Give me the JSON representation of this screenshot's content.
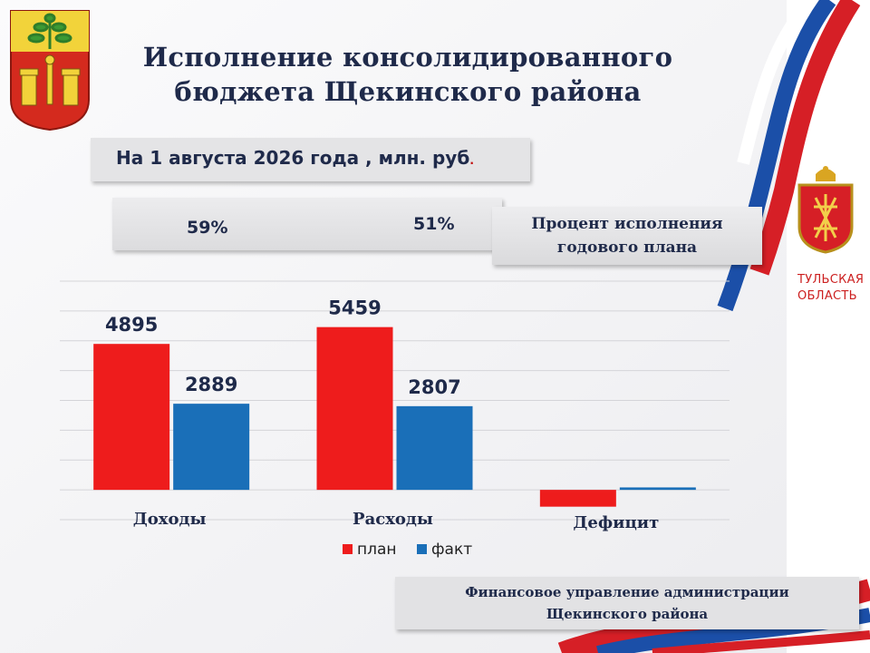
{
  "header": {
    "title_line1": "Исполнение консолидированного",
    "title_line2": "бюджета Щекинского района"
  },
  "date_label": "На 1 августа 2026 года , млн. руб",
  "date_suffix": ".",
  "percent": {
    "income": "59%",
    "expense": "51%",
    "legend_line1": "Процент исполнения",
    "legend_line2": "годового плана"
  },
  "chart_data": {
    "type": "bar",
    "categories": [
      "Доходы",
      "Расходы",
      "Дефицит"
    ],
    "series": [
      {
        "name": "план",
        "color": "#ee1c1c",
        "values": [
          4895,
          5459,
          -564
        ]
      },
      {
        "name": "факт",
        "color": "#1a6fb8",
        "values": [
          2889,
          2807,
          82
        ]
      }
    ],
    "data_labels": {
      "план": [
        "4895",
        "5459",
        ""
      ],
      "факт": [
        "2889",
        "2807",
        ""
      ]
    },
    "ylim": [
      -1000,
      7000
    ],
    "grid": true,
    "legend_position": "bottom"
  },
  "footer": {
    "line1": "Финансовое управление администрации",
    "line2": "Щекинского района"
  },
  "region": {
    "line1": "ТУЛЬСКАЯ",
    "line2": "ОБЛАСТЬ"
  },
  "colors": {
    "title": "#1f2a4a",
    "flag_white": "#ffffff",
    "flag_blue": "#1b4fa8",
    "flag_red": "#d61f26"
  }
}
